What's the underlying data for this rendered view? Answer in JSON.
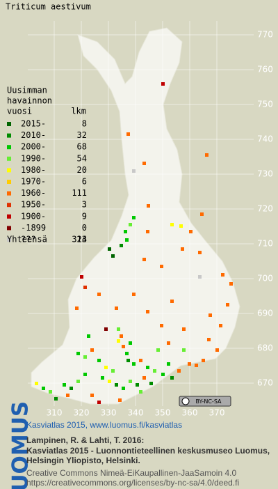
{
  "title": "Triticum aestivum",
  "legend": {
    "heading": [
      "Uusimman",
      "havainnon",
      "vuosi"
    ],
    "count_heading": "lkm",
    "items": [
      {
        "label": "2015-",
        "count": 8,
        "color": "#006400"
      },
      {
        "label": "2010-",
        "count": 32,
        "color": "#008c00"
      },
      {
        "label": "2000-",
        "count": 68,
        "color": "#00c800"
      },
      {
        "label": "1990-",
        "count": 54,
        "color": "#66ee33"
      },
      {
        "label": "1980-",
        "count": 20,
        "color": "#ffff00"
      },
      {
        "label": "1970-",
        "count": 6,
        "color": "#ffcc00"
      },
      {
        "label": "1960-",
        "count": 111,
        "color": "#ff6a00"
      },
      {
        "label": "1950-",
        "count": 3,
        "color": "#e03000"
      },
      {
        "label": "1900-",
        "count": 9,
        "color": "#c00000"
      },
      {
        "label": "-1899",
        "count": 0,
        "color": "#800000"
      },
      {
        "label": "???",
        "count": 13,
        "color": "#c8c8c8"
      }
    ],
    "total_label": "Yhteensä",
    "total": 324
  },
  "map": {
    "xticks": [
      310,
      320,
      330,
      340,
      350,
      360,
      370
    ],
    "yticks": [
      670,
      680,
      690,
      700,
      710,
      720,
      730,
      740,
      750,
      760,
      770
    ]
  },
  "license_badge": "BY-NC-SA",
  "footer": {
    "logo": "LUOMUS",
    "heading": "Kasviatlas 2015, www.luomus.fi/kasviatlas",
    "citation": [
      "Lampinen, R. & Lahti, T. 2016:",
      "Kasviatlas 2015 - Luonnontieteellinen keskusmuseo Luomus,",
      "Helsingin Yliopisto, Helsinki."
    ],
    "license": [
      "Creative Commons Nimeä-EiKaupallinen-JaaSamoin 4.0",
      "https://creativecommons.org/licenses/by-nc-sa/4.0/deed.fi"
    ]
  }
}
